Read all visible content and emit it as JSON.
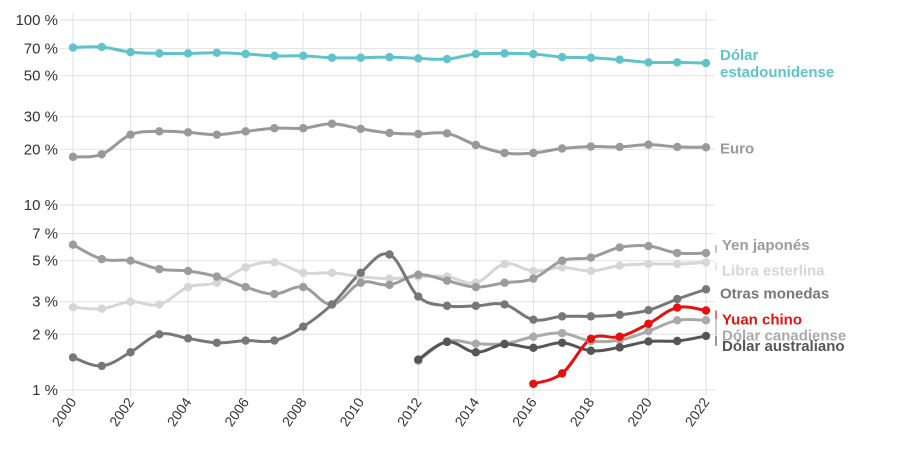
{
  "chart_data": {
    "type": "line",
    "y_scale": "log",
    "ylim": [
      1,
      100
    ],
    "xlim": [
      2000,
      2022
    ],
    "grid": true,
    "y_ticks": [
      {
        "value": 100,
        "label": "100 %"
      },
      {
        "value": 70,
        "label": "70 %"
      },
      {
        "value": 50,
        "label": "50 %"
      },
      {
        "value": 30,
        "label": "30 %"
      },
      {
        "value": 20,
        "label": "20 %"
      },
      {
        "value": 10,
        "label": "10 %"
      },
      {
        "value": 7,
        "label": "7 %"
      },
      {
        "value": 5,
        "label": "5 %"
      },
      {
        "value": 3,
        "label": "3 %"
      },
      {
        "value": 2,
        "label": "2 %"
      },
      {
        "value": 1,
        "label": "1 %"
      }
    ],
    "x_ticks": [
      "2000",
      "2002",
      "2004",
      "2006",
      "2008",
      "2010",
      "2012",
      "2014",
      "2016",
      "2018",
      "2020",
      "2022"
    ],
    "series": [
      {
        "name": "Dólar estadounidense",
        "label_lines": [
          "Dólar",
          "estadounidense"
        ],
        "color": "#5ec4c9",
        "x": [
          2000,
          2001,
          2002,
          2003,
          2004,
          2005,
          2006,
          2007,
          2008,
          2009,
          2010,
          2011,
          2012,
          2013,
          2014,
          2015,
          2016,
          2017,
          2018,
          2019,
          2020,
          2021,
          2022
        ],
        "values": [
          71,
          71.5,
          67,
          66,
          66,
          66.5,
          65.5,
          64,
          64,
          62.5,
          62.5,
          63,
          62,
          61.5,
          65.5,
          66,
          65.5,
          63,
          62.5,
          61,
          59,
          59,
          58.5
        ]
      },
      {
        "name": "Euro",
        "label_lines": [
          "Euro"
        ],
        "color": "#999999",
        "x": [
          2000,
          2001,
          2002,
          2003,
          2004,
          2005,
          2006,
          2007,
          2008,
          2009,
          2010,
          2011,
          2012,
          2013,
          2014,
          2015,
          2016,
          2017,
          2018,
          2019,
          2020,
          2021,
          2022
        ],
        "values": [
          18.2,
          18.8,
          24,
          25,
          24.7,
          24,
          25,
          26,
          26,
          27.5,
          25.8,
          24.5,
          24.2,
          24.4,
          21.1,
          19.1,
          19.1,
          20.2,
          20.7,
          20.6,
          21.2,
          20.6,
          20.5
        ]
      },
      {
        "name": "Yen japonés",
        "label_lines": [
          "Yen japonés"
        ],
        "color": "#9c9c9c",
        "x": [
          2000,
          2001,
          2002,
          2003,
          2004,
          2005,
          2006,
          2007,
          2008,
          2009,
          2010,
          2011,
          2012,
          2013,
          2014,
          2015,
          2016,
          2017,
          2018,
          2019,
          2020,
          2021,
          2022
        ],
        "values": [
          6.1,
          5.1,
          5,
          4.5,
          4.4,
          4.1,
          3.6,
          3.3,
          3.6,
          2.9,
          3.8,
          3.7,
          4.2,
          3.9,
          3.6,
          3.8,
          4,
          5,
          5.2,
          5.9,
          6,
          5.5,
          5.5
        ]
      },
      {
        "name": "Libra esterlina",
        "label_lines": [
          "Libra esterlina"
        ],
        "color": "#d6d6d6",
        "x": [
          2000,
          2001,
          2002,
          2003,
          2004,
          2005,
          2006,
          2007,
          2008,
          2009,
          2010,
          2011,
          2012,
          2013,
          2014,
          2015,
          2016,
          2017,
          2018,
          2019,
          2020,
          2021,
          2022
        ],
        "values": [
          2.8,
          2.75,
          3,
          2.9,
          3.6,
          3.8,
          4.6,
          4.9,
          4.3,
          4.3,
          4.1,
          4.0,
          4.1,
          4.1,
          3.8,
          4.8,
          4.4,
          4.6,
          4.4,
          4.7,
          4.8,
          4.8,
          4.9
        ]
      },
      {
        "name": "Otras monedas",
        "label_lines": [
          "Otras monedas"
        ],
        "color": "#777777",
        "x": [
          2000,
          2001,
          2002,
          2003,
          2004,
          2005,
          2006,
          2007,
          2008,
          2009,
          2010,
          2011,
          2012,
          2013,
          2014,
          2015,
          2016,
          2017,
          2018,
          2019,
          2020,
          2021,
          2022
        ],
        "values": [
          1.5,
          1.35,
          1.6,
          2.0,
          1.9,
          1.8,
          1.85,
          1.85,
          2.2,
          2.9,
          4.3,
          5.4,
          3.2,
          2.85,
          2.85,
          2.9,
          2.4,
          2.5,
          2.5,
          2.55,
          2.7,
          3.1,
          3.5
        ]
      },
      {
        "name": "Yuan chino",
        "label_lines": [
          "Yuan chino"
        ],
        "color": "#e8100e",
        "x": [
          2016,
          2017,
          2018,
          2019,
          2020,
          2021,
          2022
        ],
        "values": [
          1.08,
          1.23,
          1.89,
          1.94,
          2.28,
          2.79,
          2.69
        ]
      },
      {
        "name": "Dólar canadiense",
        "label_lines": [
          "Dólar canadiense"
        ],
        "color": "#aaaaaa",
        "x": [
          2012,
          2013,
          2014,
          2015,
          2016,
          2017,
          2018,
          2019,
          2020,
          2021,
          2022
        ],
        "values": [
          1.44,
          1.83,
          1.78,
          1.78,
          1.94,
          2.03,
          1.84,
          1.86,
          2.08,
          2.38,
          2.38
        ]
      },
      {
        "name": "Dólar australiano",
        "label_lines": [
          "Dólar australiano"
        ],
        "color": "#555555",
        "x": [
          2012,
          2013,
          2014,
          2015,
          2016,
          2017,
          2018,
          2019,
          2020,
          2021,
          2022
        ],
        "values": [
          1.46,
          1.82,
          1.6,
          1.77,
          1.69,
          1.8,
          1.63,
          1.7,
          1.83,
          1.84,
          1.96
        ]
      }
    ]
  }
}
